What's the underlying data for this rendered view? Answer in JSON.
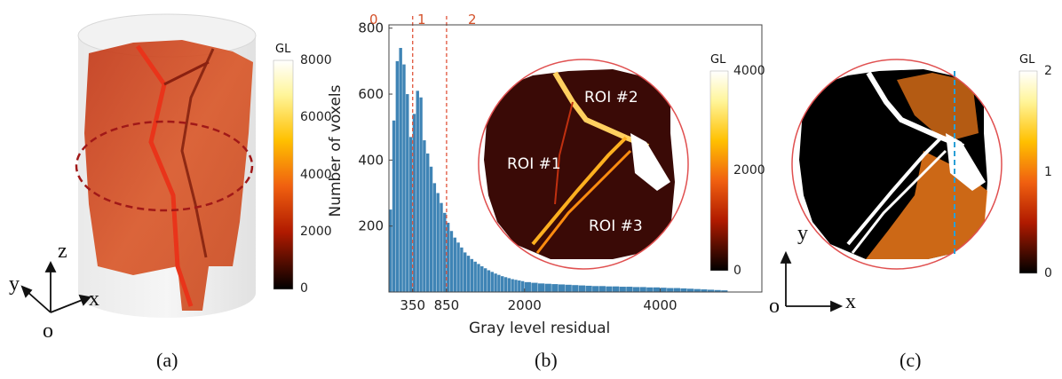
{
  "panel_a": {
    "colorbar": {
      "title": "GL",
      "ticks": [
        "8000",
        "6000",
        "4000",
        "2000",
        "0"
      ]
    },
    "axes": {
      "z": "z",
      "y": "y",
      "x": "x",
      "origin": "o"
    },
    "caption": "(a)"
  },
  "panel_b": {
    "caption": "(b)",
    "region_labels": [
      "0",
      "1",
      "2"
    ],
    "inset": {
      "roi_labels": [
        "ROI #2",
        "ROI #1",
        "ROI #3"
      ],
      "colorbar": {
        "title": "GL",
        "ticks": [
          "4000",
          "2000",
          "0"
        ]
      }
    }
  },
  "panel_c": {
    "colorbar": {
      "title": "GL",
      "ticks": [
        "2",
        "1",
        "0"
      ]
    },
    "axes": {
      "y": "y",
      "x": "x",
      "origin": "o"
    },
    "caption": "(c)"
  },
  "colors": {
    "bar": "#3f84b5",
    "threshold": "#e0533a",
    "circle": "#e05050",
    "dashed_line": "#2a9fd6",
    "ellipse": "#a01818"
  },
  "chart_data": {
    "type": "bar",
    "xlabel": "Gray level residual",
    "ylabel": "Number of voxels",
    "xlim": [
      0,
      5500
    ],
    "ylim": [
      0,
      810
    ],
    "x_ticks": [
      350,
      850,
      2000,
      4000
    ],
    "y_ticks": [
      200,
      400,
      600,
      800
    ],
    "thresholds": [
      350,
      850
    ],
    "bin_width": 50,
    "series": [
      {
        "x": [
          25,
          75,
          125,
          175,
          225,
          275,
          325,
          375,
          425,
          475,
          525,
          575,
          625,
          675,
          725,
          775,
          825,
          875,
          925,
          975,
          1025,
          1075,
          1125,
          1175,
          1225,
          1275,
          1325,
          1375,
          1425,
          1475,
          1525,
          1575,
          1625,
          1675,
          1725,
          1775,
          1825,
          1875,
          1925,
          1975,
          2050,
          2150,
          2250,
          2350,
          2450,
          2550,
          2650,
          2750,
          2850,
          2950,
          3050,
          3150,
          3250,
          3350,
          3450,
          3550,
          3650,
          3750,
          3850,
          3950,
          4050,
          4150,
          4250,
          4350,
          4450,
          4550,
          4650,
          4750,
          4850,
          4950
        ],
        "y": [
          250,
          520,
          700,
          740,
          690,
          600,
          470,
          540,
          610,
          590,
          460,
          420,
          380,
          330,
          300,
          270,
          240,
          210,
          185,
          165,
          150,
          135,
          120,
          110,
          100,
          92,
          85,
          78,
          72,
          66,
          61,
          56,
          52,
          48,
          45,
          42,
          39,
          37,
          35,
          33,
          30,
          28,
          26,
          25,
          24,
          23,
          22,
          21,
          20,
          19,
          18,
          18,
          17,
          17,
          16,
          16,
          15,
          15,
          14,
          14,
          13,
          12,
          12,
          11,
          10,
          9,
          8,
          7,
          6,
          5
        ]
      }
    ]
  }
}
